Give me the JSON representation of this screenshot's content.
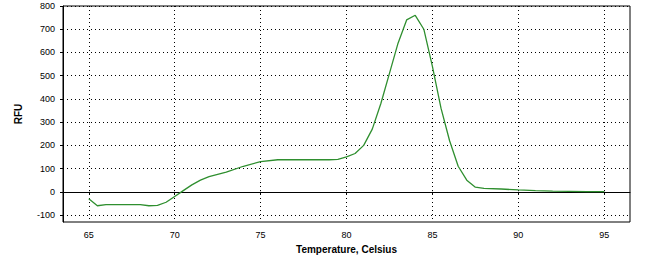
{
  "chart_data": {
    "type": "line",
    "x_label": "Temperature, Celsius",
    "y_label": "RFU",
    "color": "#2f8f2f",
    "grid": true,
    "xlim": [
      63.5,
      96.5
    ],
    "xticks": [
      65,
      70,
      75,
      80,
      85,
      90,
      95
    ],
    "ylim": [
      -130,
      800
    ],
    "yticks": [
      -100,
      0,
      100,
      200,
      300,
      400,
      500,
      600,
      700,
      800
    ],
    "x": [
      65,
      65.5,
      66,
      67,
      68,
      68.5,
      69,
      69.5,
      70,
      70.5,
      71,
      71.5,
      72,
      73,
      74,
      75,
      76,
      77,
      78,
      79,
      79.5,
      80,
      80.5,
      81,
      81.5,
      82,
      82.5,
      83,
      83.5,
      84,
      84.5,
      85,
      85.5,
      86,
      86.5,
      87,
      87.5,
      88,
      89,
      90,
      91,
      92,
      93,
      94,
      95
    ],
    "values": [
      -30,
      -60,
      -55,
      -55,
      -55,
      -60,
      -58,
      -45,
      -20,
      5,
      30,
      50,
      65,
      85,
      110,
      130,
      138,
      138,
      138,
      138,
      140,
      150,
      165,
      200,
      270,
      380,
      510,
      640,
      740,
      760,
      700,
      540,
      360,
      220,
      110,
      50,
      20,
      15,
      12,
      8,
      5,
      3,
      2,
      1,
      1
    ]
  }
}
